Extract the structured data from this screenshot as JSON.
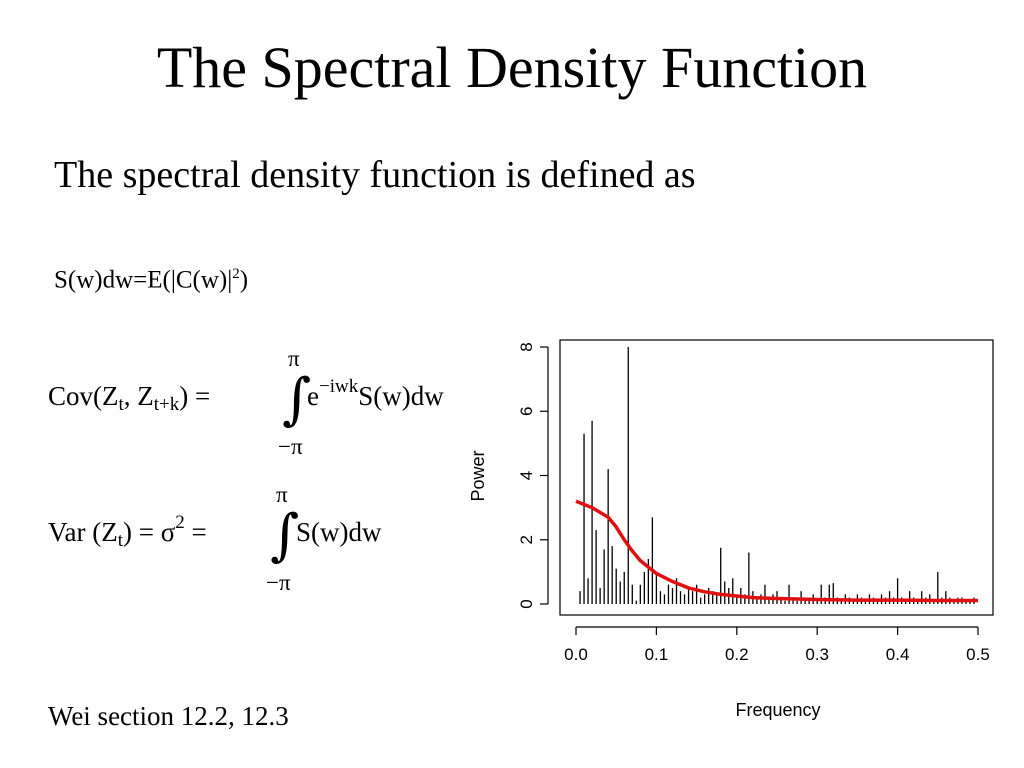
{
  "slide": {
    "title": "The Spectral Density Function",
    "intro": "The spectral density function is defined as",
    "definition": {
      "text": "S(w)dw=E(|C(w)|",
      "exp": "2",
      "close": ")"
    },
    "reference": "Wei section 12.2, 12.3"
  },
  "equations": {
    "cov": {
      "lhs": "Cov(Z",
      "sub1": "t",
      "sep": ", Z",
      "sub2": "t+k",
      "mid": ") = ",
      "upper": "π",
      "lower": "−π",
      "integrand": "e",
      "exp": "−iwk",
      "tail": "S(w)dw"
    },
    "var": {
      "lhs": "Var (Z",
      "sub": "t",
      "mid": ") = σ",
      "exp": "2",
      "eq": " = ",
      "upper": "π",
      "lower": "−π",
      "tail": "S(w)dw"
    }
  },
  "chart_data": {
    "type": "line",
    "xlabel": "Frequency",
    "ylabel": "Power",
    "xlim": [
      0,
      0.5
    ],
    "ylim": [
      0,
      8
    ],
    "x_ticks": [
      "0.0",
      "0.1",
      "0.2",
      "0.3",
      "0.4",
      "0.5"
    ],
    "y_ticks": [
      "0",
      "2",
      "4",
      "6",
      "8"
    ],
    "series": [
      {
        "kind": "spikes",
        "color": "#000000",
        "x": [
          0.005,
          0.01,
          0.015,
          0.02,
          0.025,
          0.03,
          0.035,
          0.04,
          0.045,
          0.05,
          0.055,
          0.06,
          0.065,
          0.07,
          0.075,
          0.08,
          0.085,
          0.09,
          0.095,
          0.1,
          0.105,
          0.11,
          0.115,
          0.12,
          0.125,
          0.13,
          0.135,
          0.14,
          0.145,
          0.15,
          0.155,
          0.16,
          0.165,
          0.17,
          0.175,
          0.18,
          0.185,
          0.19,
          0.195,
          0.2,
          0.205,
          0.21,
          0.215,
          0.22,
          0.225,
          0.23,
          0.235,
          0.24,
          0.245,
          0.25,
          0.255,
          0.26,
          0.265,
          0.27,
          0.275,
          0.28,
          0.285,
          0.29,
          0.295,
          0.3,
          0.305,
          0.31,
          0.315,
          0.32,
          0.325,
          0.33,
          0.335,
          0.34,
          0.345,
          0.35,
          0.355,
          0.36,
          0.365,
          0.37,
          0.375,
          0.38,
          0.385,
          0.39,
          0.395,
          0.4,
          0.405,
          0.41,
          0.415,
          0.42,
          0.425,
          0.43,
          0.435,
          0.44,
          0.445,
          0.45,
          0.455,
          0.46,
          0.465,
          0.47,
          0.475,
          0.48,
          0.485,
          0.49,
          0.495
        ],
        "values": [
          0.4,
          5.3,
          0.8,
          5.7,
          2.3,
          0.5,
          1.7,
          4.2,
          1.8,
          1.1,
          0.7,
          1.0,
          8.0,
          0.6,
          0.1,
          0.6,
          1.0,
          1.4,
          2.7,
          0.9,
          0.4,
          0.3,
          0.6,
          0.5,
          0.8,
          0.4,
          0.3,
          0.5,
          0.4,
          0.6,
          0.2,
          0.3,
          0.5,
          0.4,
          0.3,
          1.75,
          0.7,
          0.5,
          0.8,
          0.3,
          0.5,
          0.3,
          1.6,
          0.4,
          0.2,
          0.3,
          0.6,
          0.2,
          0.3,
          0.4,
          0.2,
          0.1,
          0.6,
          0.2,
          0.1,
          0.4,
          0.2,
          0.1,
          0.3,
          0.1,
          0.6,
          0.2,
          0.6,
          0.65,
          0.2,
          0.1,
          0.3,
          0.2,
          0.1,
          0.3,
          0.2,
          0.1,
          0.3,
          0.2,
          0.1,
          0.3,
          0.2,
          0.4,
          0.2,
          0.8,
          0.2,
          0.1,
          0.4,
          0.2,
          0.1,
          0.4,
          0.2,
          0.3,
          0.1,
          1.0,
          0.2,
          0.4,
          0.2,
          0.1,
          0.2,
          0.2,
          0.1,
          0.1,
          0.2
        ]
      },
      {
        "kind": "line",
        "color": "#e01010",
        "x": [
          0.0,
          0.02,
          0.04,
          0.05,
          0.06,
          0.07,
          0.08,
          0.1,
          0.12,
          0.14,
          0.16,
          0.18,
          0.2,
          0.22,
          0.25,
          0.3,
          0.35,
          0.4,
          0.45,
          0.5
        ],
        "values": [
          3.2,
          3.0,
          2.7,
          2.4,
          2.0,
          1.65,
          1.35,
          0.95,
          0.7,
          0.5,
          0.38,
          0.3,
          0.25,
          0.2,
          0.17,
          0.14,
          0.12,
          0.12,
          0.11,
          0.11
        ]
      }
    ]
  }
}
